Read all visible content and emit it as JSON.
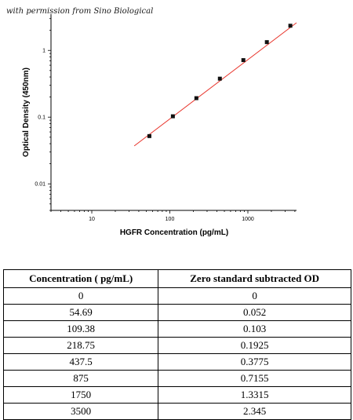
{
  "permission_text": "with permission from Sino Biological",
  "chart_data": {
    "type": "scatter",
    "xlabel": "HGFR Concentration (pg/mL)",
    "ylabel": "Optical Density (450nm)",
    "xscale": "log",
    "yscale": "log",
    "xlim": [
      3,
      4200
    ],
    "ylim": [
      0.004,
      3.5
    ],
    "xticks": [
      10,
      100,
      1000
    ],
    "xtick_labels": [
      "10",
      "100",
      "1000"
    ],
    "yticks": [
      0.01,
      0.1,
      1
    ],
    "ytick_labels": [
      "0.01",
      "0.1",
      "1"
    ],
    "grid": false,
    "points": [
      {
        "x": 54.69,
        "y": 0.052
      },
      {
        "x": 109.38,
        "y": 0.103
      },
      {
        "x": 218.75,
        "y": 0.1925
      },
      {
        "x": 437.5,
        "y": 0.3775
      },
      {
        "x": 875,
        "y": 0.7155
      },
      {
        "x": 1750,
        "y": 1.3315
      },
      {
        "x": 3500,
        "y": 2.345
      }
    ],
    "fit_line": {
      "x": [
        35,
        4200
      ],
      "y": [
        0.037,
        2.6
      ]
    },
    "marker_color": "#111111",
    "line_color": "#e8332a"
  },
  "table": {
    "headers": [
      "Concentration ( pg/mL)",
      "Zero standard subtracted OD"
    ],
    "rows": [
      [
        "0",
        "0"
      ],
      [
        "54.69",
        "0.052"
      ],
      [
        "109.38",
        "0.103"
      ],
      [
        "218.75",
        "0.1925"
      ],
      [
        "437.5",
        "0.3775"
      ],
      [
        "875",
        "0.7155"
      ],
      [
        "1750",
        "1.3315"
      ],
      [
        "3500",
        "2.345"
      ]
    ]
  }
}
